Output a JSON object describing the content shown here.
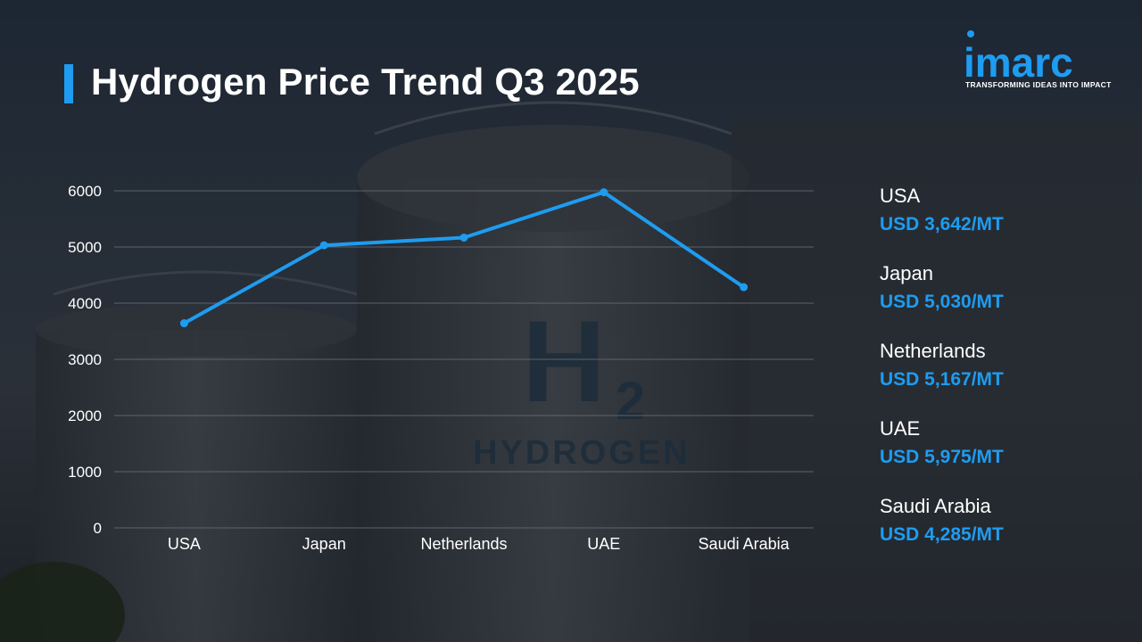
{
  "header": {
    "title": "Hydrogen Price Trend Q3 2025"
  },
  "logo": {
    "brand": "imarc",
    "tagline": "TRANSFORMING IDEAS INTO IMPACT"
  },
  "background": {
    "tank_label_big": "H",
    "tank_label_sub": "2",
    "tank_label_word": "HYDROGEN"
  },
  "colors": {
    "accent": "#1e9cf0",
    "grid": "#6b7078",
    "text": "#ffffff"
  },
  "legend": [
    {
      "country": "USA",
      "price": "USD 3,642/MT"
    },
    {
      "country": "Japan",
      "price": "USD 5,030/MT"
    },
    {
      "country": "Netherlands",
      "price": "USD 5,167/MT"
    },
    {
      "country": "UAE",
      "price": "USD 5,975/MT"
    },
    {
      "country": "Saudi Arabia",
      "price": "USD 4,285/MT"
    }
  ],
  "chart_data": {
    "type": "line",
    "categories": [
      "USA",
      "Japan",
      "Netherlands",
      "UAE",
      "Saudi Arabia"
    ],
    "values": [
      3642,
      5030,
      5167,
      5975,
      4285
    ],
    "yticks": [
      0,
      1000,
      2000,
      3000,
      4000,
      5000,
      6000
    ],
    "ylim": [
      0,
      6000
    ],
    "grid": true,
    "line_color": "#1e9cf0"
  }
}
